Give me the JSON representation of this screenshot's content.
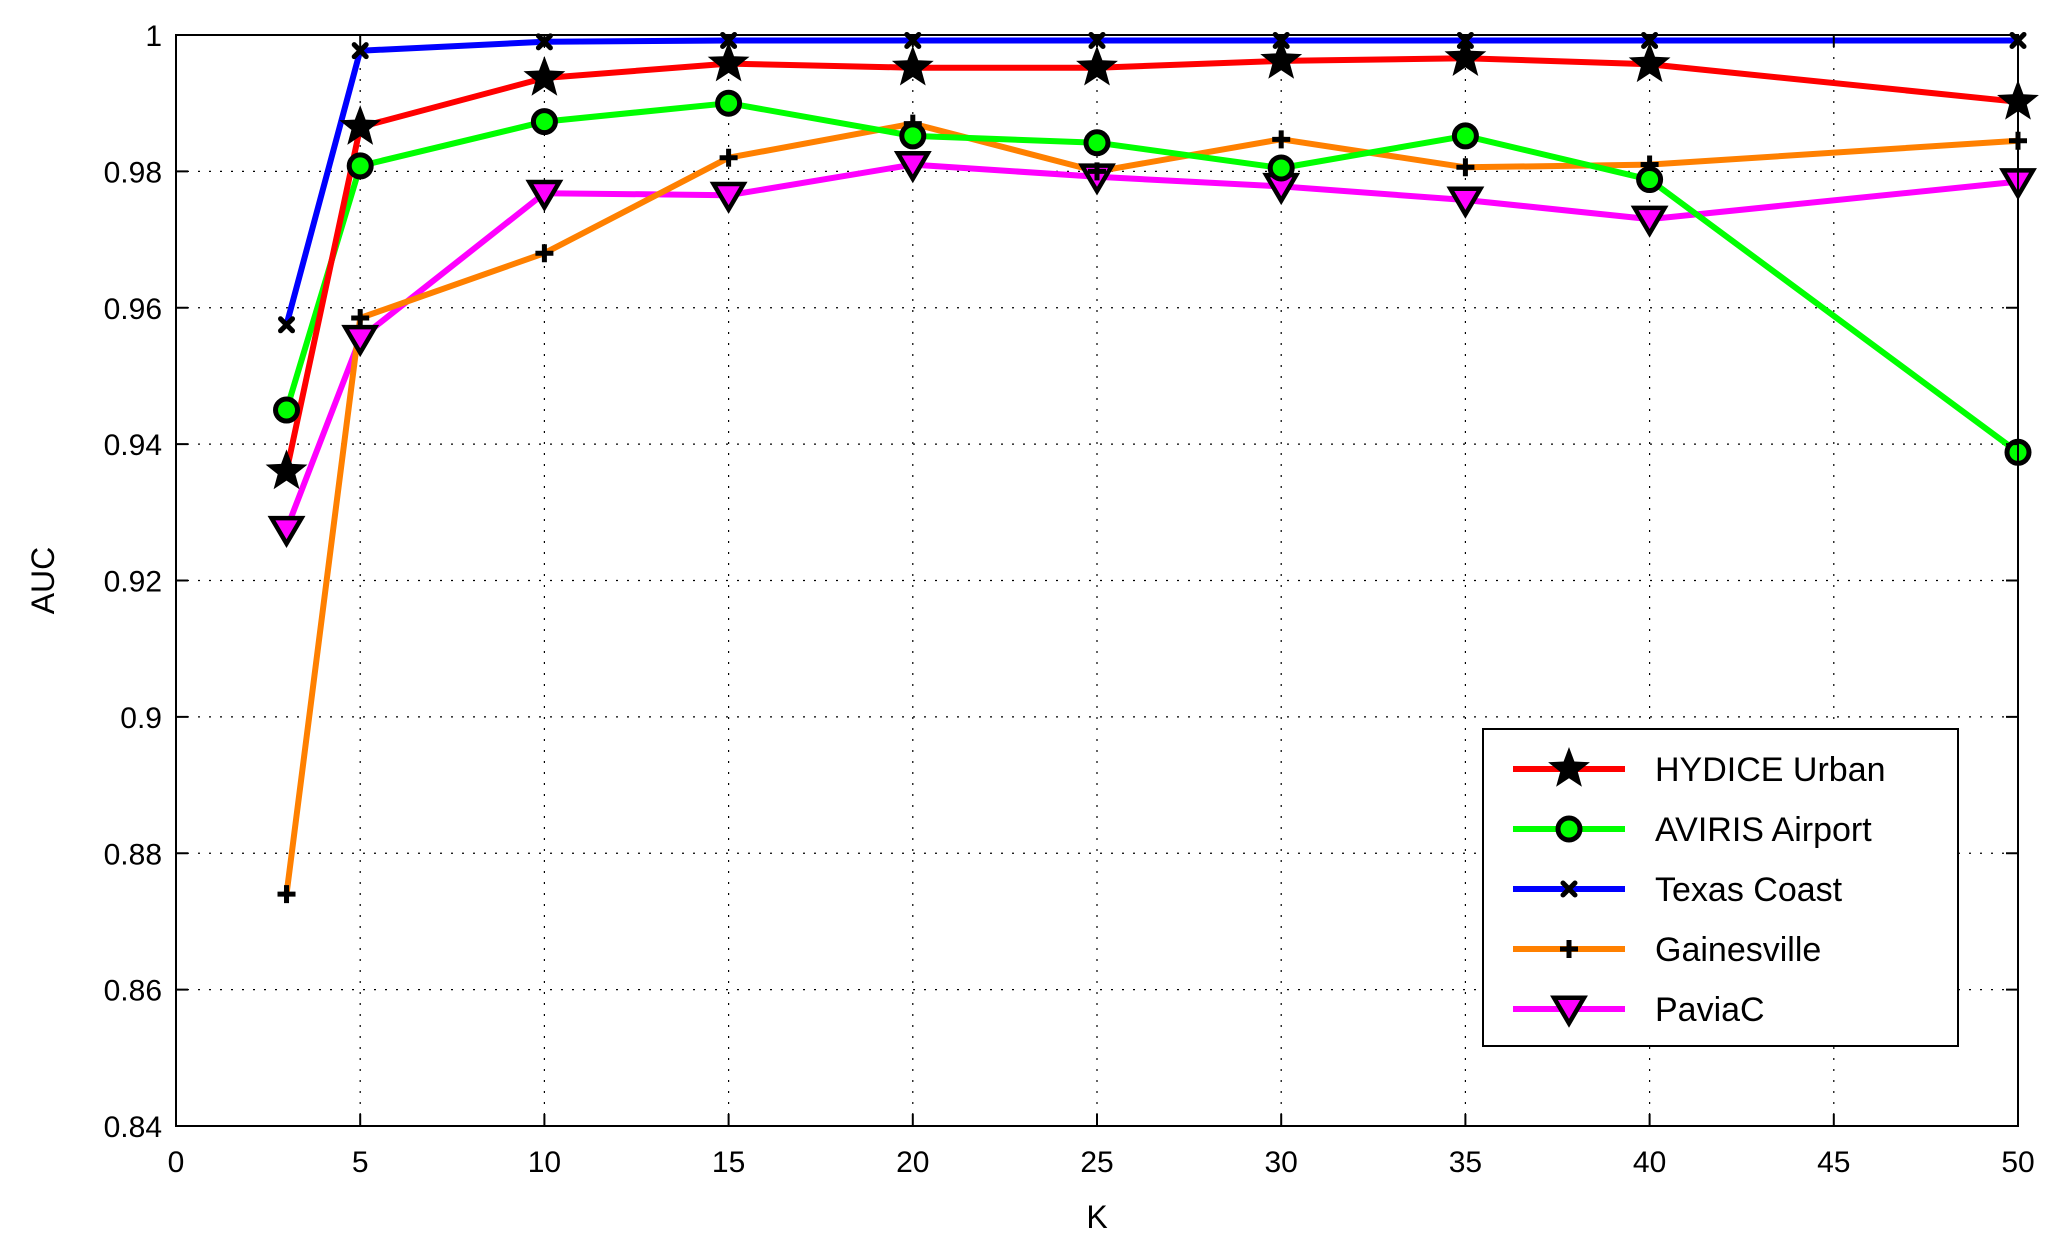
{
  "chart_data": {
    "type": "line",
    "title": "",
    "xlabel": "K",
    "ylabel": "AUC",
    "xlim": [
      0,
      50
    ],
    "ylim": [
      0.84,
      1.0
    ],
    "xticks": [
      0,
      5,
      10,
      15,
      20,
      25,
      30,
      35,
      40,
      45,
      50
    ],
    "yticks": [
      0.84,
      0.86,
      0.88,
      0.9,
      0.92,
      0.94,
      0.96,
      0.98,
      1.0
    ],
    "ytick_labels": [
      "0.84",
      "0.86",
      "0.88",
      "0.9",
      "0.92",
      "0.94",
      "0.96",
      "0.98",
      "1"
    ],
    "grid": true,
    "legend_position": "bottom-right",
    "x": [
      3,
      5,
      10,
      15,
      20,
      25,
      30,
      35,
      40,
      50
    ],
    "series": [
      {
        "name": "HYDICE Urban",
        "color": "#ff0000",
        "marker": "star",
        "values": [
          0.936,
          0.9865,
          0.9937,
          0.9958,
          0.9952,
          0.9952,
          0.9962,
          0.9966,
          0.9957,
          0.9902
        ]
      },
      {
        "name": "AVIRIS Airport",
        "color": "#00ff00",
        "marker": "circle",
        "values": [
          0.945,
          0.9808,
          0.9873,
          0.99,
          0.9852,
          0.9842,
          0.9805,
          0.9852,
          0.9788,
          0.9388
        ]
      },
      {
        "name": "Texas Coast",
        "color": "#0000ff",
        "marker": "x",
        "values": [
          0.9575,
          0.9977,
          0.999,
          0.9992,
          0.9992,
          0.9992,
          0.9992,
          0.9992,
          0.9992,
          0.9992
        ]
      },
      {
        "name": "Gainesville",
        "color": "#ff8000",
        "marker": "plus",
        "values": [
          0.874,
          0.9585,
          0.968,
          0.982,
          0.987,
          0.98,
          0.9847,
          0.9806,
          0.981,
          0.9845
        ]
      },
      {
        "name": "PaviaC",
        "color": "#ff00ff",
        "marker": "triangle-down",
        "values": [
          0.9275,
          0.9555,
          0.9768,
          0.9765,
          0.981,
          0.9792,
          0.9778,
          0.9758,
          0.973,
          0.9785
        ]
      }
    ]
  }
}
